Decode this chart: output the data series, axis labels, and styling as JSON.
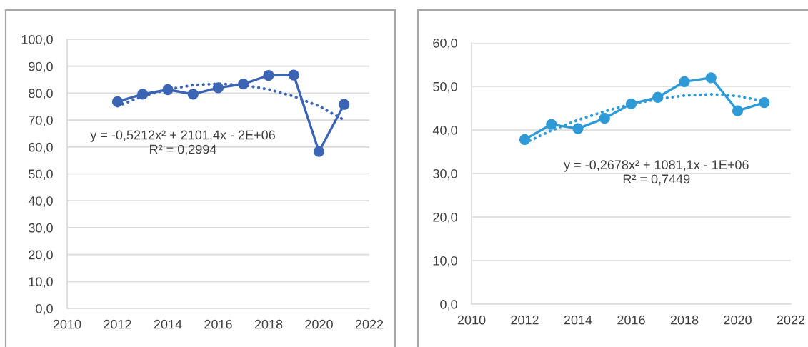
{
  "chart_data": [
    {
      "type": "line",
      "x": [
        2012,
        2013,
        2014,
        2015,
        2016,
        2017,
        2018,
        2019,
        2020,
        2021
      ],
      "series": [
        {
          "color": "#3b64b4",
          "marker": "circle",
          "line_style": "solid",
          "values": [
            76.8,
            79.6,
            81.3,
            79.6,
            82.0,
            83.4,
            86.6,
            86.7,
            58.3,
            75.8
          ]
        },
        {
          "type": "line",
          "color": "#3b64b4",
          "marker": "none",
          "line_style": "dotted",
          "x": [
            2012,
            2013,
            2014,
            2015,
            2016,
            2017,
            2018,
            2019,
            2020,
            2021
          ],
          "values": [
            75.2,
            78.8,
            81.4,
            83.0,
            83.5,
            83.0,
            81.4,
            78.8,
            75.2,
            70.0
          ]
        }
      ],
      "xlim": [
        2010,
        2022
      ],
      "xticks": [
        2010,
        2012,
        2014,
        2016,
        2018,
        2020,
        2022
      ],
      "ylim": [
        0,
        100
      ],
      "yticks": [
        {
          "value": 0,
          "label": "0,0"
        },
        {
          "value": 10,
          "label": "10,0"
        },
        {
          "value": 20,
          "label": "20,0"
        },
        {
          "value": 30,
          "label": "30,0"
        },
        {
          "value": 40,
          "label": "40,0"
        },
        {
          "value": 50,
          "label": "50,0"
        },
        {
          "value": 60,
          "label": "60,0"
        },
        {
          "value": 70,
          "label": "70,0"
        },
        {
          "value": 80,
          "label": "80,0"
        },
        {
          "value": 90,
          "label": "90,0"
        },
        {
          "value": 100,
          "label": "100,0"
        }
      ],
      "grid": "y",
      "annotations": [
        "y = -0,5212x² + 2101,4x - 2E+06\nR² = 0,2994"
      ]
    },
    {
      "type": "line",
      "x": [
        2012,
        2013,
        2014,
        2015,
        2016,
        2017,
        2018,
        2019,
        2020,
        2021
      ],
      "series": [
        {
          "color": "#2e9ad6",
          "marker": "circle",
          "line_style": "solid",
          "values": [
            37.8,
            41.3,
            40.3,
            42.7,
            46.0,
            47.5,
            51.1,
            52.0,
            44.4,
            46.3
          ]
        },
        {
          "type": "line",
          "color": "#2e9ad6",
          "marker": "none",
          "line_style": "dotted",
          "x": [
            2012,
            2013,
            2014,
            2015,
            2016,
            2017,
            2018,
            2019,
            2020,
            2021
          ],
          "values": [
            37.0,
            39.9,
            42.3,
            44.3,
            45.9,
            47.1,
            47.9,
            48.2,
            47.8,
            46.6
          ]
        }
      ],
      "xlim": [
        2010,
        2022
      ],
      "xticks": [
        2010,
        2012,
        2014,
        2016,
        2018,
        2020,
        2022
      ],
      "ylim": [
        0,
        60
      ],
      "yticks": [
        {
          "value": 0,
          "label": "0,0"
        },
        {
          "value": 10,
          "label": "10,0"
        },
        {
          "value": 20,
          "label": "20,0"
        },
        {
          "value": 30,
          "label": "30,0"
        },
        {
          "value": 40,
          "label": "40,0"
        },
        {
          "value": 50,
          "label": "50,0"
        },
        {
          "value": 60,
          "label": "60,0"
        }
      ],
      "grid": "y",
      "annotations": [
        "y = -0,2678x² + 1081,1x - 1E+06\nR² = 0,7449"
      ]
    }
  ]
}
